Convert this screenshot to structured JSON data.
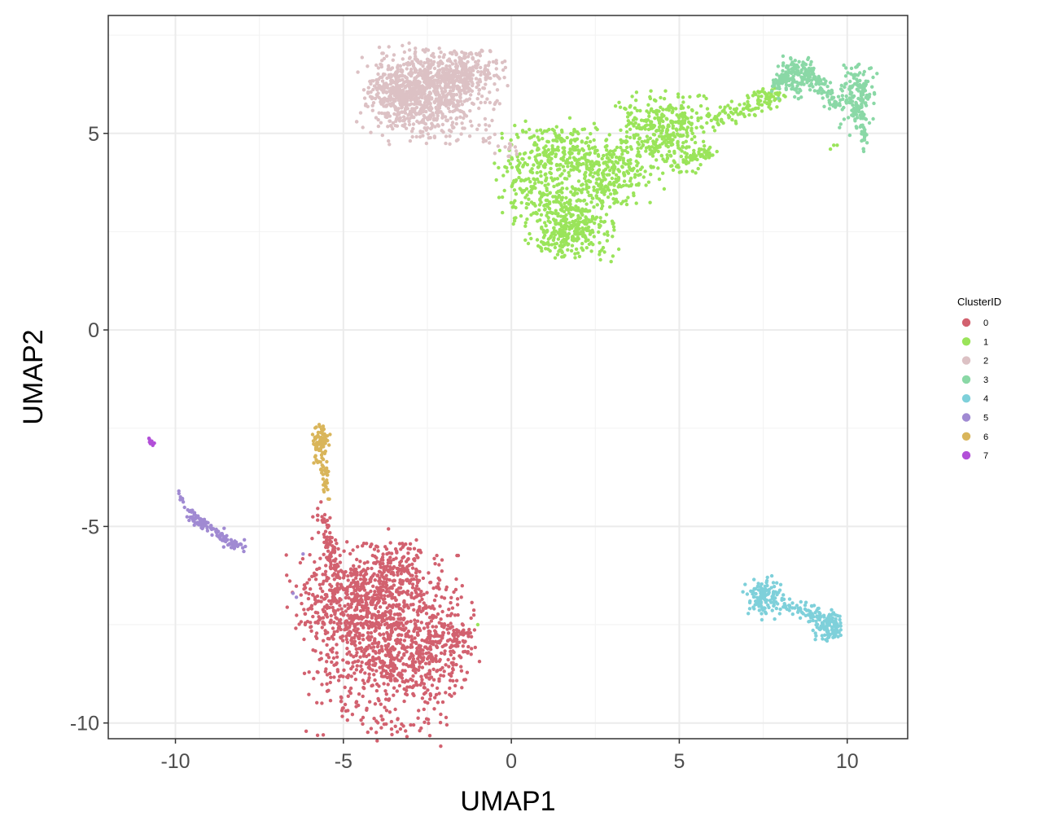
{
  "chart_data": {
    "type": "scatter",
    "xlabel": "UMAP1",
    "ylabel": "UMAP2",
    "xlim": [
      -12,
      11.8
    ],
    "ylim": [
      -10.4,
      8.0
    ],
    "x_ticks": [
      -10,
      -5,
      0,
      5,
      10
    ],
    "x_tick_labels": [
      "-10",
      "-5",
      "0",
      "5",
      "10"
    ],
    "y_ticks": [
      -10,
      -5,
      0,
      5
    ],
    "y_tick_labels": [
      "-10",
      "-5",
      "0",
      "5"
    ],
    "grid": true,
    "panel_border": true,
    "legend": {
      "title": "ClusterID",
      "position": "right"
    },
    "series": [
      {
        "name": "0",
        "color": "#d2616f",
        "blobs": [
          {
            "cx": -3.8,
            "cy": -8.0,
            "sx": 1.0,
            "sy": 1.1,
            "n": 900
          },
          {
            "cx": -4.8,
            "cy": -6.7,
            "sx": 0.8,
            "sy": 0.6,
            "n": 400
          },
          {
            "cx": -3.3,
            "cy": -6.0,
            "sx": 0.5,
            "sy": 0.4,
            "n": 120
          },
          {
            "cx": -2.3,
            "cy": -8.0,
            "sx": 0.6,
            "sy": 0.7,
            "n": 200
          },
          {
            "cx": -1.6,
            "cy": -7.8,
            "sx": 0.3,
            "sy": 0.2,
            "n": 40
          }
        ],
        "lines": [
          {
            "x0": -5.6,
            "y0": -4.6,
            "x1": -5.3,
            "y1": -6.0,
            "spread": 0.12,
            "n": 60
          }
        ]
      },
      {
        "name": "1",
        "color": "#9ae45a",
        "blobs": [
          {
            "cx": 2.0,
            "cy": 2.8,
            "sx": 0.5,
            "sy": 0.45,
            "n": 250
          },
          {
            "cx": 2.8,
            "cy": 4.0,
            "sx": 0.8,
            "sy": 0.4,
            "n": 300
          },
          {
            "cx": 0.8,
            "cy": 3.8,
            "sx": 0.6,
            "sy": 0.7,
            "n": 250
          },
          {
            "cx": 1.5,
            "cy": 4.6,
            "sx": 0.8,
            "sy": 0.3,
            "n": 120
          },
          {
            "cx": 4.5,
            "cy": 5.3,
            "sx": 0.6,
            "sy": 0.35,
            "n": 250
          },
          {
            "cx": 4.5,
            "cy": 4.6,
            "sx": 0.5,
            "sy": 0.3,
            "n": 80
          },
          {
            "cx": 1.6,
            "cy": 2.3,
            "sx": 0.3,
            "sy": 0.2,
            "n": 60
          }
        ],
        "lines": [
          {
            "x0": 5.8,
            "y0": 5.3,
            "x1": 8.0,
            "y1": 6.0,
            "spread": 0.15,
            "n": 130
          },
          {
            "x0": 4.8,
            "y0": 4.1,
            "x1": 6.0,
            "y1": 4.6,
            "spread": 0.12,
            "n": 60
          },
          {
            "x0": 0.8,
            "y0": 2.1,
            "x1": 1.6,
            "y1": 2.5,
            "spread": 0.08,
            "n": 25
          }
        ],
        "points": [
          [
            -1.0,
            -7.5
          ],
          [
            9.6,
            4.7
          ],
          [
            9.5,
            4.6
          ],
          [
            9.7,
            4.7
          ],
          [
            0.1,
            5.2
          ],
          [
            0.2,
            4.9
          ]
        ]
      },
      {
        "name": "2",
        "color": "#dcc1c4",
        "blobs": [
          {
            "cx": -2.5,
            "cy": 6.0,
            "sx": 0.9,
            "sy": 0.55,
            "n": 800
          },
          {
            "cx": -3.3,
            "cy": 6.0,
            "sx": 0.5,
            "sy": 0.35,
            "n": 200
          },
          {
            "cx": -1.5,
            "cy": 6.6,
            "sx": 0.6,
            "sy": 0.25,
            "n": 200
          }
        ],
        "lines": [
          {
            "x0": -0.6,
            "y0": 4.8,
            "x1": 0.2,
            "y1": 4.4,
            "spread": 0.12,
            "n": 15
          }
        ]
      },
      {
        "name": "3",
        "color": "#8ad8a6",
        "blobs": [
          {
            "cx": 10.3,
            "cy": 5.9,
            "sx": 0.25,
            "sy": 0.4,
            "n": 160
          },
          {
            "cx": 8.5,
            "cy": 6.4,
            "sx": 0.3,
            "sy": 0.25,
            "n": 110
          }
        ],
        "lines": [
          {
            "x0": 7.8,
            "y0": 6.2,
            "x1": 8.7,
            "y1": 6.8,
            "spread": 0.08,
            "n": 70
          },
          {
            "x0": 8.8,
            "y0": 6.6,
            "x1": 9.7,
            "y1": 5.7,
            "spread": 0.12,
            "n": 70
          },
          {
            "x0": 10.5,
            "y0": 5.4,
            "x1": 10.5,
            "y1": 4.6,
            "spread": 0.08,
            "n": 20
          }
        ]
      },
      {
        "name": "4",
        "color": "#7ed0da",
        "blobs": [
          {
            "cx": 7.5,
            "cy": -6.8,
            "sx": 0.25,
            "sy": 0.25,
            "n": 110
          },
          {
            "cx": 9.5,
            "cy": -7.5,
            "sx": 0.2,
            "sy": 0.2,
            "n": 110
          }
        ],
        "lines": [
          {
            "x0": 7.8,
            "y0": -6.9,
            "x1": 9.2,
            "y1": -7.3,
            "spread": 0.12,
            "n": 80
          }
        ]
      },
      {
        "name": "5",
        "color": "#a08ad2",
        "blobs": [],
        "lines": [
          {
            "x0": -9.6,
            "y0": -4.7,
            "x1": -8.0,
            "y1": -5.6,
            "spread": 0.08,
            "n": 120
          },
          {
            "x0": -9.9,
            "y0": -4.1,
            "x1": -9.7,
            "y1": -4.6,
            "spread": 0.03,
            "n": 8
          }
        ],
        "points": [
          [
            -6.5,
            -6.7
          ],
          [
            -6.4,
            -6.8
          ],
          [
            -6.2,
            -5.7
          ]
        ]
      },
      {
        "name": "6",
        "color": "#d9b55a",
        "blobs": [
          {
            "cx": -5.7,
            "cy": -2.9,
            "sx": 0.12,
            "sy": 0.22,
            "n": 80
          }
        ],
        "lines": [
          {
            "x0": -5.6,
            "y0": -3.3,
            "x1": -5.5,
            "y1": -4.2,
            "spread": 0.07,
            "n": 35
          }
        ]
      },
      {
        "name": "7",
        "color": "#b24fd8",
        "blobs": [],
        "lines": [
          {
            "x0": -10.8,
            "y0": -2.75,
            "x1": -10.65,
            "y1": -2.95,
            "spread": 0.02,
            "n": 15
          }
        ]
      }
    ]
  }
}
